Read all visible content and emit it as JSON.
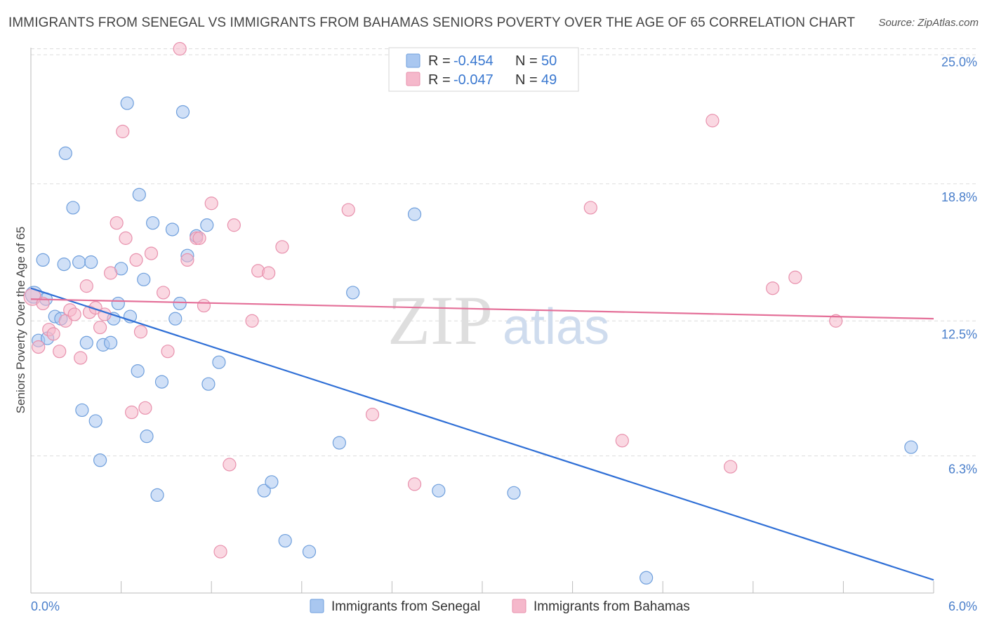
{
  "title": "IMMIGRANTS FROM SENEGAL VS IMMIGRANTS FROM BAHAMAS SENIORS POVERTY OVER THE AGE OF 65 CORRELATION CHART",
  "source": "Source: ZipAtlas.com",
  "watermark": {
    "zip": "ZIP",
    "atlas": "atlas"
  },
  "legend_top": [
    {
      "r_label": "R = ",
      "r_value": "-0.454",
      "n_label": "N = ",
      "n_value": "50",
      "color": "#a9c7f0"
    },
    {
      "r_label": "R = ",
      "r_value": "-0.047",
      "n_label": "N = ",
      "n_value": "49",
      "color": "#f5b8cb"
    }
  ],
  "legend_bottom": [
    {
      "label": "Immigrants from Senegal",
      "color": "#a9c7f0"
    },
    {
      "label": "Immigrants from Bahamas",
      "color": "#f5b8cb"
    }
  ],
  "chart_data": {
    "type": "scatter",
    "title": "IMMIGRANTS FROM SENEGAL VS IMMIGRANTS FROM BAHAMAS SENIORS POVERTY OVER THE AGE OF 65 CORRELATION CHART",
    "xlabel": "",
    "ylabel": "Seniors Poverty Over the Age of 65",
    "xlim": [
      0,
      6.0
    ],
    "ylim": [
      0,
      25.5
    ],
    "x_tick_labels": [
      "0.0%",
      "6.0%"
    ],
    "y_ticks": [
      6.3,
      12.5,
      18.8,
      25.0
    ],
    "y_tick_labels": [
      "6.3%",
      "12.5%",
      "18.8%",
      "25.0%"
    ],
    "grid": true,
    "legend_position": "top-center",
    "series": [
      {
        "name": "Immigrants from Senegal",
        "color": "#a9c7f0",
        "stroke": "#6f9fdc",
        "trend": {
          "x0": 0.0,
          "y0": 14.0,
          "x1": 6.0,
          "y1": 0.6,
          "color": "#2f6fd6"
        },
        "points": [
          [
            0.02,
            13.7,
            2
          ],
          [
            0.05,
            11.6,
            1
          ],
          [
            0.08,
            15.3,
            1
          ],
          [
            0.1,
            13.5,
            1
          ],
          [
            0.11,
            11.7,
            1
          ],
          [
            0.16,
            12.7,
            1
          ],
          [
            0.2,
            12.6,
            1
          ],
          [
            0.22,
            15.1,
            1
          ],
          [
            0.23,
            20.2,
            1
          ],
          [
            0.28,
            17.7,
            1
          ],
          [
            0.32,
            15.2,
            1
          ],
          [
            0.34,
            8.4,
            1
          ],
          [
            0.37,
            11.5,
            1
          ],
          [
            0.4,
            15.2,
            1
          ],
          [
            0.43,
            7.9,
            1
          ],
          [
            0.46,
            6.1,
            1
          ],
          [
            0.48,
            11.4,
            1
          ],
          [
            0.53,
            11.5,
            1
          ],
          [
            0.55,
            12.6,
            1
          ],
          [
            0.58,
            13.3,
            1
          ],
          [
            0.6,
            14.9,
            1
          ],
          [
            0.64,
            22.5,
            1
          ],
          [
            0.66,
            12.7,
            1
          ],
          [
            0.71,
            10.2,
            1
          ],
          [
            0.72,
            18.3,
            1
          ],
          [
            0.75,
            14.4,
            1
          ],
          [
            0.77,
            7.2,
            1
          ],
          [
            0.81,
            17.0,
            1
          ],
          [
            0.84,
            4.5,
            1
          ],
          [
            0.87,
            9.7,
            1
          ],
          [
            0.94,
            16.7,
            1
          ],
          [
            0.96,
            12.6,
            1
          ],
          [
            0.99,
            13.3,
            1
          ],
          [
            1.01,
            22.1,
            1
          ],
          [
            1.04,
            15.5,
            1
          ],
          [
            1.1,
            16.4,
            1
          ],
          [
            1.17,
            16.9,
            1
          ],
          [
            1.18,
            9.6,
            1
          ],
          [
            1.25,
            10.6,
            1
          ],
          [
            1.55,
            4.7,
            1
          ],
          [
            1.6,
            5.1,
            1
          ],
          [
            1.69,
            2.4,
            1
          ],
          [
            1.85,
            1.9,
            1
          ],
          [
            2.05,
            6.9,
            1
          ],
          [
            2.14,
            13.8,
            1
          ],
          [
            2.55,
            17.4,
            1
          ],
          [
            2.71,
            4.7,
            1
          ],
          [
            3.21,
            4.6,
            1
          ],
          [
            4.09,
            0.7,
            1
          ],
          [
            5.85,
            6.7,
            1
          ]
        ]
      },
      {
        "name": "Immigrants from Bahamas",
        "color": "#f5b8cb",
        "stroke": "#e891ad",
        "trend": {
          "x0": 0.0,
          "y0": 13.5,
          "x1": 6.0,
          "y1": 12.6,
          "color": "#e46f98"
        },
        "points": [
          [
            0.01,
            13.6,
            2
          ],
          [
            0.05,
            11.3,
            1
          ],
          [
            0.08,
            13.3,
            1
          ],
          [
            0.12,
            12.1,
            1
          ],
          [
            0.15,
            11.9,
            1
          ],
          [
            0.19,
            11.1,
            1
          ],
          [
            0.23,
            12.5,
            1
          ],
          [
            0.26,
            13.0,
            1
          ],
          [
            0.29,
            12.8,
            1
          ],
          [
            0.33,
            10.8,
            1
          ],
          [
            0.37,
            14.1,
            1
          ],
          [
            0.39,
            12.9,
            1
          ],
          [
            0.43,
            13.1,
            1
          ],
          [
            0.46,
            12.2,
            1
          ],
          [
            0.49,
            12.8,
            1
          ],
          [
            0.53,
            14.7,
            1
          ],
          [
            0.57,
            17.0,
            1
          ],
          [
            0.61,
            21.2,
            1
          ],
          [
            0.63,
            16.3,
            1
          ],
          [
            0.67,
            8.3,
            1
          ],
          [
            0.7,
            15.3,
            1
          ],
          [
            0.73,
            12.0,
            1
          ],
          [
            0.76,
            8.5,
            1
          ],
          [
            0.8,
            15.6,
            1
          ],
          [
            0.88,
            13.8,
            1
          ],
          [
            0.91,
            11.1,
            1
          ],
          [
            0.99,
            25.0,
            1
          ],
          [
            1.04,
            15.3,
            1
          ],
          [
            1.1,
            16.3,
            1
          ],
          [
            1.12,
            16.3,
            1
          ],
          [
            1.15,
            13.2,
            1
          ],
          [
            1.2,
            17.9,
            1
          ],
          [
            1.26,
            1.9,
            1
          ],
          [
            1.32,
            5.9,
            1
          ],
          [
            1.35,
            16.9,
            1
          ],
          [
            1.47,
            12.5,
            1
          ],
          [
            1.51,
            14.8,
            1
          ],
          [
            1.58,
            14.7,
            1
          ],
          [
            1.67,
            15.9,
            1
          ],
          [
            2.11,
            17.6,
            1
          ],
          [
            2.27,
            8.2,
            1
          ],
          [
            2.55,
            5.0,
            1
          ],
          [
            3.72,
            17.7,
            1
          ],
          [
            3.93,
            7.0,
            1
          ],
          [
            4.53,
            21.7,
            1
          ],
          [
            4.65,
            5.8,
            1
          ],
          [
            4.93,
            14.0,
            1
          ],
          [
            5.08,
            14.5,
            1
          ],
          [
            5.35,
            12.5,
            1
          ]
        ]
      }
    ]
  }
}
